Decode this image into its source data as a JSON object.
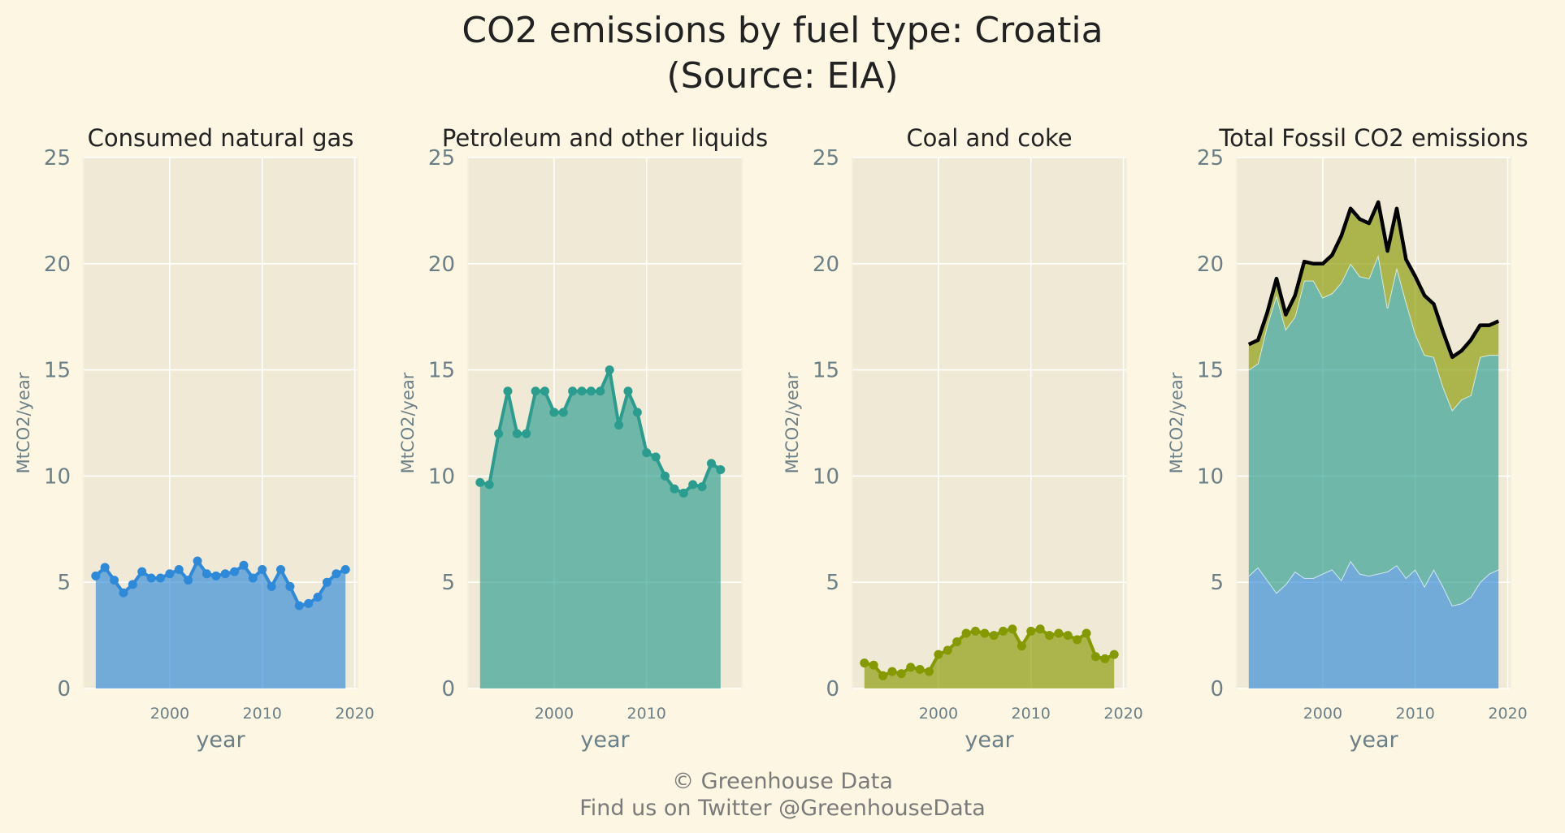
{
  "figure": {
    "title_line1": "CO2 emissions by fuel type: Croatia",
    "title_line2": "(Source: EIA)",
    "footer_line1": "© Greenhouse Data",
    "footer_line2": "Find us on Twitter @GreenhouseData"
  },
  "colors": {
    "background": "#fdf6e3",
    "panel_background": "#f0e9d6",
    "grid": "#ffffff",
    "tick_text": "#6b7f86",
    "gas": "#2e8ad8",
    "petroleum": "#2a9d8f",
    "coal": "#859900",
    "total_line": "#000000"
  },
  "chart_data": [
    {
      "type": "area",
      "title": "Consumed natural gas",
      "xlabel": "year",
      "ylabel": "MtCO2/year",
      "ylim": [
        0,
        25
      ],
      "yticks": [
        "0",
        "5",
        "10",
        "15",
        "20",
        "25"
      ],
      "xlim": [
        1990.7,
        2020.3
      ],
      "xticks": [
        "2000",
        "2010",
        "2020"
      ],
      "color": "#2e8ad8",
      "x": [
        1992,
        1993,
        1994,
        1995,
        1996,
        1997,
        1998,
        1999,
        2000,
        2001,
        2002,
        2003,
        2004,
        2005,
        2006,
        2007,
        2008,
        2009,
        2010,
        2011,
        2012,
        2013,
        2014,
        2015,
        2016,
        2017,
        2018,
        2019
      ],
      "values": [
        5.3,
        5.7,
        5.1,
        4.5,
        4.9,
        5.5,
        5.2,
        5.2,
        5.4,
        5.6,
        5.1,
        6.0,
        5.4,
        5.3,
        5.4,
        5.5,
        5.8,
        5.2,
        5.6,
        4.8,
        5.6,
        4.8,
        3.9,
        4.0,
        4.3,
        5.0,
        5.4,
        5.6
      ]
    },
    {
      "type": "area",
      "title": "Petroleum and other liquids",
      "xlabel": "year",
      "ylabel": "MtCO2/year",
      "ylim": [
        0,
        25
      ],
      "yticks": [
        "0",
        "5",
        "10",
        "15",
        "20",
        "25"
      ],
      "xlim": [
        1990.7,
        2020.3
      ],
      "xticks": [
        "2000",
        "2010"
      ],
      "color": "#2a9d8f",
      "x": [
        1992,
        1993,
        1994,
        1995,
        1996,
        1997,
        1998,
        1999,
        2000,
        2001,
        2002,
        2003,
        2004,
        2005,
        2006,
        2007,
        2008,
        2009,
        2010,
        2011,
        2012,
        2013,
        2014,
        2015,
        2016,
        2017,
        2018
      ],
      "values": [
        9.7,
        9.6,
        12.0,
        14.0,
        12.0,
        12.0,
        14.0,
        14.0,
        13.0,
        13.0,
        14.0,
        14.0,
        14.0,
        14.0,
        15.0,
        12.4,
        14.0,
        13.0,
        11.1,
        10.9,
        10.0,
        9.4,
        9.2,
        9.6,
        9.5,
        10.6,
        10.3
      ]
    },
    {
      "type": "area",
      "title": "Coal and coke",
      "xlabel": "year",
      "ylabel": "MtCO2/year",
      "ylim": [
        0,
        25
      ],
      "yticks": [
        "0",
        "5",
        "10",
        "15",
        "20",
        "25"
      ],
      "xlim": [
        1990.7,
        2020.3
      ],
      "xticks": [
        "2000",
        "2010",
        "2020"
      ],
      "color": "#859900",
      "x": [
        1992,
        1993,
        1994,
        1995,
        1996,
        1997,
        1998,
        1999,
        2000,
        2001,
        2002,
        2003,
        2004,
        2005,
        2006,
        2007,
        2008,
        2009,
        2010,
        2011,
        2012,
        2013,
        2014,
        2015,
        2016,
        2017,
        2018,
        2019
      ],
      "values": [
        1.2,
        1.1,
        0.6,
        0.8,
        0.7,
        1.0,
        0.9,
        0.8,
        1.6,
        1.8,
        2.2,
        2.6,
        2.7,
        2.6,
        2.5,
        2.7,
        2.8,
        2.0,
        2.7,
        2.8,
        2.5,
        2.6,
        2.5,
        2.3,
        2.6,
        1.5,
        1.4,
        1.6
      ]
    },
    {
      "type": "area",
      "stacked": true,
      "title": "Total Fossil CO2 emissions",
      "xlabel": "year",
      "ylabel": "MtCO2/year",
      "ylim": [
        0,
        25
      ],
      "yticks": [
        "0",
        "5",
        "10",
        "15",
        "20",
        "25"
      ],
      "xlim": [
        1990.7,
        2020.3
      ],
      "xticks": [
        "2000",
        "2010",
        "2020"
      ],
      "x": [
        1992,
        1993,
        1994,
        1995,
        1996,
        1997,
        1998,
        1999,
        2000,
        2001,
        2002,
        2003,
        2004,
        2005,
        2006,
        2007,
        2008,
        2009,
        2010,
        2011,
        2012,
        2013,
        2014,
        2015,
        2016,
        2017,
        2018,
        2019
      ],
      "series": [
        {
          "color": "#2e8ad8",
          "values": [
            5.3,
            5.7,
            5.1,
            4.5,
            4.9,
            5.5,
            5.2,
            5.2,
            5.4,
            5.6,
            5.1,
            6.0,
            5.4,
            5.3,
            5.4,
            5.5,
            5.8,
            5.2,
            5.6,
            4.8,
            5.6,
            4.8,
            3.9,
            4.0,
            4.3,
            5.0,
            5.4,
            5.6
          ]
        },
        {
          "color": "#2a9d8f",
          "values": [
            9.7,
            9.6,
            12.0,
            14.0,
            12.0,
            12.0,
            14.0,
            14.0,
            13.0,
            13.0,
            14.0,
            14.0,
            14.0,
            14.0,
            15.0,
            12.4,
            14.0,
            13.0,
            11.1,
            10.9,
            10.0,
            9.4,
            9.2,
            9.6,
            9.5,
            10.6,
            10.3,
            10.1
          ]
        },
        {
          "color": "#859900",
          "values": [
            1.2,
            1.1,
            0.6,
            0.8,
            0.7,
            1.0,
            0.9,
            0.8,
            1.6,
            1.8,
            2.2,
            2.6,
            2.7,
            2.6,
            2.5,
            2.7,
            2.8,
            2.0,
            2.7,
            2.8,
            2.5,
            2.6,
            2.5,
            2.3,
            2.6,
            1.5,
            1.4,
            1.6
          ]
        }
      ],
      "total_line_color": "#000000"
    }
  ]
}
